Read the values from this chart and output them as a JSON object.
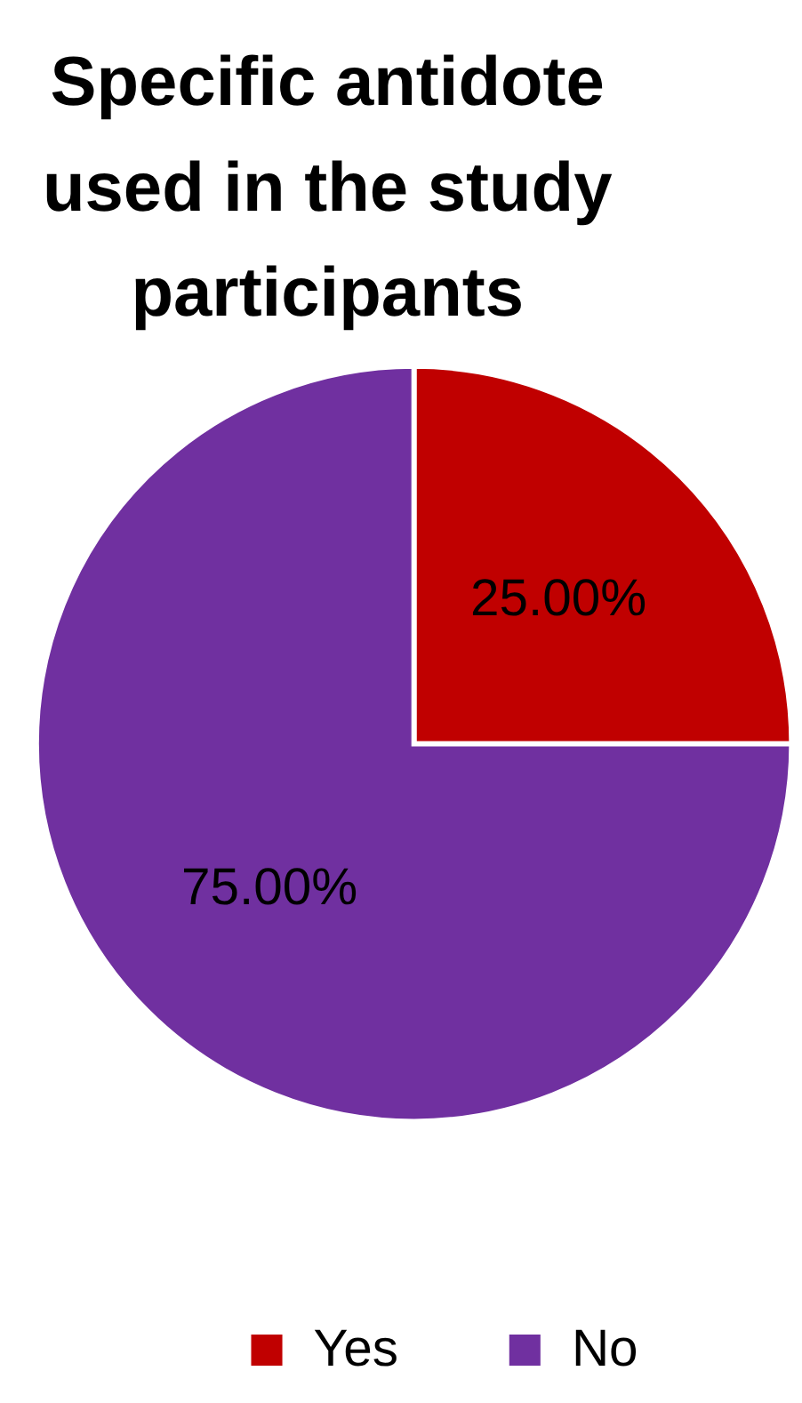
{
  "chart_data": {
    "type": "pie",
    "title": "Specific antidote used in the study participants",
    "categories": [
      "Yes",
      "No"
    ],
    "values": [
      25,
      75
    ],
    "colors": [
      "#c00000",
      "#7030a0"
    ],
    "value_labels": [
      "25.00%",
      "75.00%"
    ],
    "legend": "bottom"
  }
}
